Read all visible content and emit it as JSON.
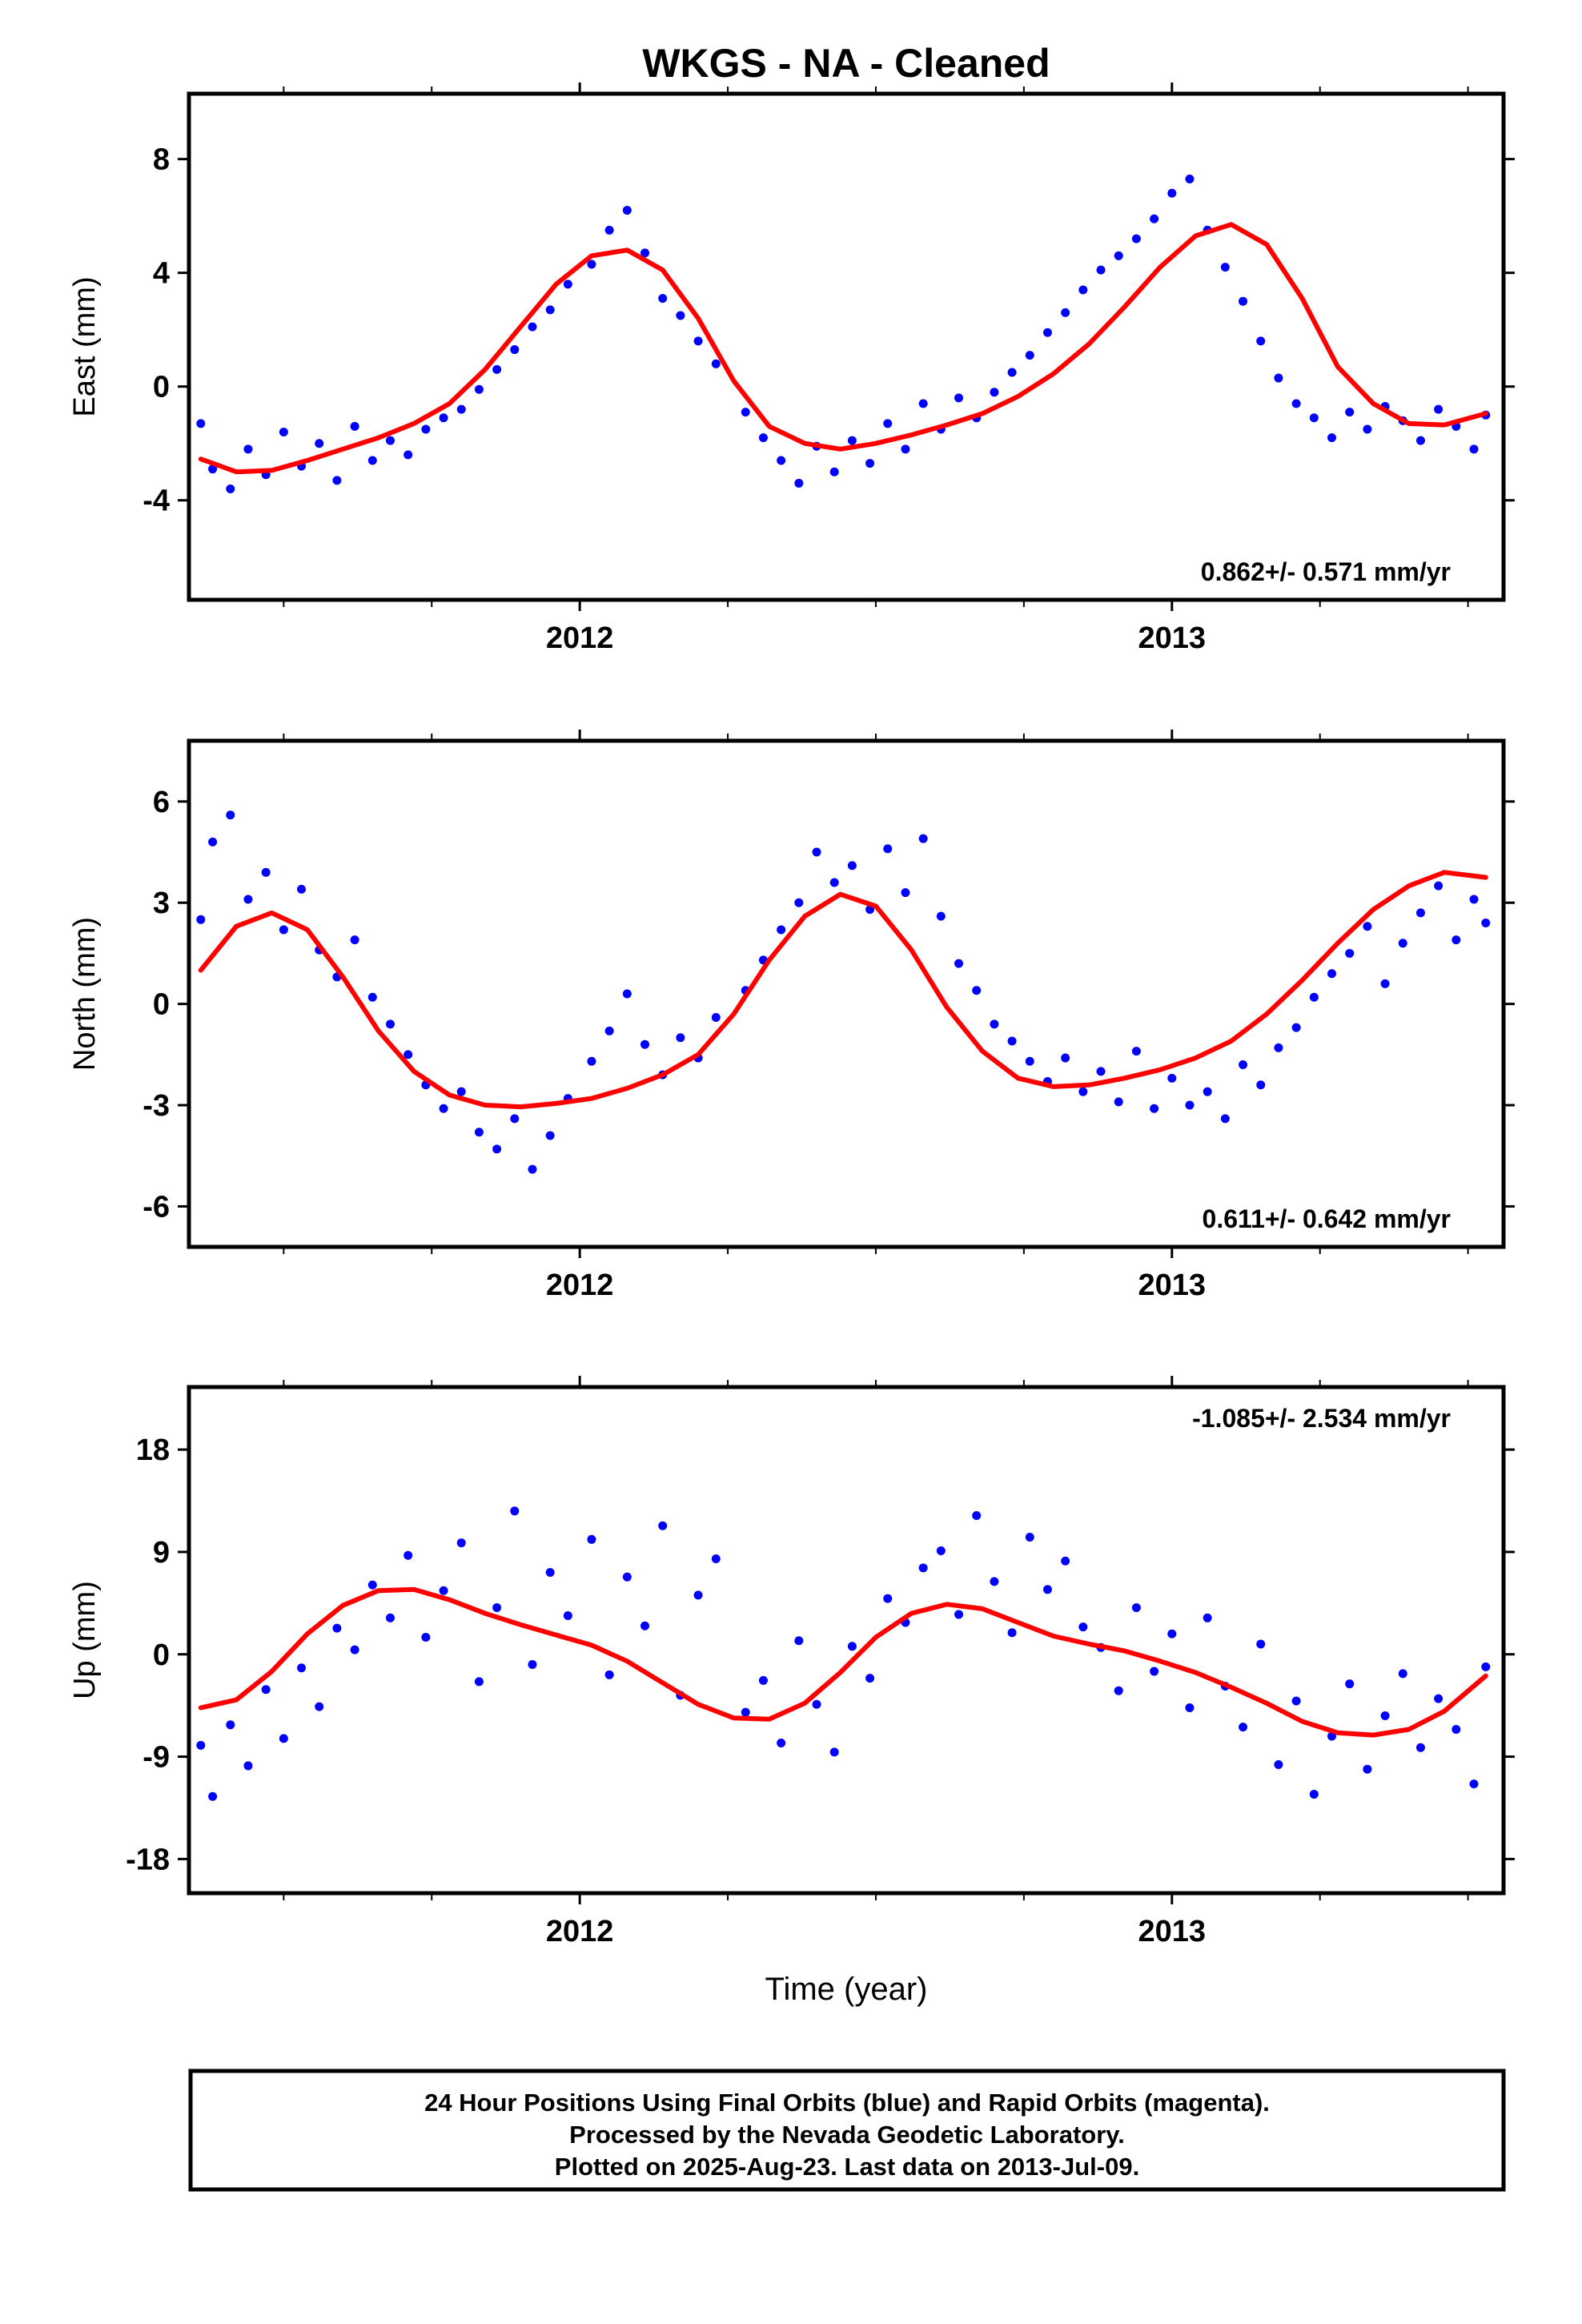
{
  "title": "WKGS  - NA - Cleaned",
  "colors": {
    "data": "#0000ff",
    "fit": "#ff0000",
    "frame": "#000000"
  },
  "chart_data": [
    {
      "type": "scatter",
      "component": "east",
      "ylabel": "East (mm)",
      "xlabel": "",
      "yticks": [
        -4,
        0,
        4,
        8
      ],
      "ylim": [
        -7.5,
        10.3
      ],
      "xlim": [
        2011.34,
        2013.56
      ],
      "xticks": [
        2012,
        2013
      ],
      "rate_text": "0.862+/- 0.571 mm/yr",
      "rate_position": "bottom-right",
      "series": [
        {
          "role": "points",
          "x": [
            2011.36,
            2011.38,
            2011.41,
            2011.44,
            2011.47,
            2011.5,
            2011.53,
            2011.56,
            2011.59,
            2011.62,
            2011.65,
            2011.68,
            2011.71,
            2011.74,
            2011.77,
            2011.8,
            2011.83,
            2011.86,
            2011.89,
            2011.92,
            2011.95,
            2011.98,
            2012.02,
            2012.05,
            2012.08,
            2012.11,
            2012.14,
            2012.17,
            2012.2,
            2012.23,
            2012.28,
            2012.31,
            2012.34,
            2012.37,
            2012.4,
            2012.43,
            2012.46,
            2012.49,
            2012.52,
            2012.55,
            2012.58,
            2012.61,
            2012.64,
            2012.67,
            2012.7,
            2012.73,
            2012.76,
            2012.79,
            2012.82,
            2012.85,
            2012.88,
            2012.91,
            2012.94,
            2012.97,
            2013.0,
            2013.03,
            2013.06,
            2013.09,
            2013.12,
            2013.15,
            2013.18,
            2013.21,
            2013.24,
            2013.27,
            2013.3,
            2013.33,
            2013.36,
            2013.39,
            2013.42,
            2013.45,
            2013.48,
            2013.51,
            2013.53
          ],
          "y": [
            -1.3,
            -2.9,
            -3.6,
            -2.2,
            -3.1,
            -1.6,
            -2.8,
            -2.0,
            -3.3,
            -1.4,
            -2.6,
            -1.9,
            -2.4,
            -1.5,
            -1.1,
            -0.8,
            -0.1,
            0.6,
            1.3,
            2.1,
            2.7,
            3.6,
            4.3,
            5.5,
            6.2,
            4.7,
            3.1,
            2.5,
            1.6,
            0.8,
            -0.9,
            -1.8,
            -2.6,
            -3.4,
            -2.1,
            -3.0,
            -1.9,
            -2.7,
            -1.3,
            -2.2,
            -0.6,
            -1.5,
            -0.4,
            -1.1,
            -0.2,
            0.5,
            1.1,
            1.9,
            2.6,
            3.4,
            4.1,
            4.6,
            5.2,
            5.9,
            6.8,
            7.3,
            5.5,
            4.2,
            3.0,
            1.6,
            0.3,
            -0.6,
            -1.1,
            -1.8,
            -0.9,
            -1.5,
            -0.7,
            -1.2,
            -1.9,
            -0.8,
            -1.4,
            -2.2,
            -1.0
          ]
        },
        {
          "role": "fit",
          "x": [
            2011.36,
            2011.42,
            2011.48,
            2011.54,
            2011.6,
            2011.66,
            2011.72,
            2011.78,
            2011.84,
            2011.9,
            2011.96,
            2012.02,
            2012.08,
            2012.14,
            2012.2,
            2012.26,
            2012.32,
            2012.38,
            2012.44,
            2012.5,
            2012.56,
            2012.62,
            2012.68,
            2012.74,
            2012.8,
            2012.86,
            2012.92,
            2012.98,
            2013.04,
            2013.1,
            2013.16,
            2013.22,
            2013.28,
            2013.34,
            2013.4,
            2013.46,
            2013.53
          ],
          "y": [
            -2.55,
            -3.0,
            -2.95,
            -2.6,
            -2.2,
            -1.8,
            -1.3,
            -0.6,
            0.6,
            2.1,
            3.6,
            4.6,
            4.8,
            4.1,
            2.4,
            0.2,
            -1.4,
            -2.0,
            -2.2,
            -2.0,
            -1.7,
            -1.35,
            -0.95,
            -0.35,
            0.45,
            1.5,
            2.8,
            4.2,
            5.3,
            5.7,
            5.0,
            3.1,
            0.7,
            -0.6,
            -1.3,
            -1.35,
            -0.95
          ]
        }
      ]
    },
    {
      "type": "scatter",
      "component": "north",
      "ylabel": "North (mm)",
      "xlabel": "",
      "yticks": [
        -6,
        -3,
        0,
        3,
        6
      ],
      "ylim": [
        -7.2,
        7.8
      ],
      "xlim": [
        2011.34,
        2013.56
      ],
      "xticks": [
        2012,
        2013
      ],
      "rate_text": "0.611+/- 0.642 mm/yr",
      "rate_position": "bottom-right",
      "series": [
        {
          "role": "points",
          "x": [
            2011.36,
            2011.38,
            2011.41,
            2011.44,
            2011.47,
            2011.5,
            2011.53,
            2011.56,
            2011.59,
            2011.62,
            2011.65,
            2011.68,
            2011.71,
            2011.74,
            2011.77,
            2011.8,
            2011.83,
            2011.86,
            2011.89,
            2011.92,
            2011.95,
            2011.98,
            2012.02,
            2012.05,
            2012.08,
            2012.11,
            2012.14,
            2012.17,
            2012.2,
            2012.23,
            2012.28,
            2012.31,
            2012.34,
            2012.37,
            2012.4,
            2012.43,
            2012.46,
            2012.49,
            2012.52,
            2012.55,
            2012.58,
            2012.61,
            2012.64,
            2012.67,
            2012.7,
            2012.73,
            2012.76,
            2012.79,
            2012.82,
            2012.85,
            2012.88,
            2012.91,
            2012.94,
            2012.97,
            2013.0,
            2013.03,
            2013.06,
            2013.09,
            2013.12,
            2013.15,
            2013.18,
            2013.21,
            2013.24,
            2013.27,
            2013.3,
            2013.33,
            2013.36,
            2013.39,
            2013.42,
            2013.45,
            2013.48,
            2013.51,
            2013.53
          ],
          "y": [
            2.5,
            4.8,
            5.6,
            3.1,
            3.9,
            2.2,
            3.4,
            1.6,
            0.8,
            1.9,
            0.2,
            -0.6,
            -1.5,
            -2.4,
            -3.1,
            -2.6,
            -3.8,
            -4.3,
            -3.4,
            -4.9,
            -3.9,
            -2.8,
            -1.7,
            -0.8,
            0.3,
            -1.2,
            -2.1,
            -1.0,
            -1.6,
            -0.4,
            0.4,
            1.3,
            2.2,
            3.0,
            4.5,
            3.6,
            4.1,
            2.8,
            4.6,
            3.3,
            4.9,
            2.6,
            1.2,
            0.4,
            -0.6,
            -1.1,
            -1.7,
            -2.3,
            -1.6,
            -2.6,
            -2.0,
            -2.9,
            -1.4,
            -3.1,
            -2.2,
            -3.0,
            -2.6,
            -3.4,
            -1.8,
            -2.4,
            -1.3,
            -0.7,
            0.2,
            0.9,
            1.5,
            2.3,
            0.6,
            1.8,
            2.7,
            3.5,
            1.9,
            3.1,
            2.4
          ]
        },
        {
          "role": "fit",
          "x": [
            2011.36,
            2011.42,
            2011.48,
            2011.54,
            2011.6,
            2011.66,
            2011.72,
            2011.78,
            2011.84,
            2011.9,
            2011.96,
            2012.02,
            2012.08,
            2012.14,
            2012.2,
            2012.26,
            2012.32,
            2012.38,
            2012.44,
            2012.5,
            2012.56,
            2012.62,
            2012.68,
            2012.74,
            2012.8,
            2012.86,
            2012.92,
            2012.98,
            2013.04,
            2013.1,
            2013.16,
            2013.22,
            2013.28,
            2013.34,
            2013.4,
            2013.46,
            2013.53
          ],
          "y": [
            1.0,
            2.3,
            2.7,
            2.2,
            0.8,
            -0.8,
            -2.0,
            -2.7,
            -3.0,
            -3.05,
            -2.95,
            -2.8,
            -2.5,
            -2.1,
            -1.5,
            -0.3,
            1.3,
            2.6,
            3.25,
            2.9,
            1.6,
            -0.1,
            -1.4,
            -2.2,
            -2.45,
            -2.4,
            -2.2,
            -1.95,
            -1.6,
            -1.1,
            -0.3,
            0.7,
            1.8,
            2.8,
            3.5,
            3.9,
            3.75
          ]
        }
      ]
    },
    {
      "type": "scatter",
      "component": "up",
      "ylabel": "Up (mm)",
      "xlabel": "Time (year)",
      "yticks": [
        -18,
        -9,
        0,
        9,
        18
      ],
      "ylim": [
        -21,
        23.5
      ],
      "xlim": [
        2011.34,
        2013.56
      ],
      "xticks": [
        2012,
        2013
      ],
      "rate_text": "-1.085+/- 2.534 mm/yr",
      "rate_position": "top-right",
      "series": [
        {
          "role": "points",
          "x": [
            2011.36,
            2011.38,
            2011.41,
            2011.44,
            2011.47,
            2011.5,
            2011.53,
            2011.56,
            2011.59,
            2011.62,
            2011.65,
            2011.68,
            2011.71,
            2011.74,
            2011.77,
            2011.8,
            2011.83,
            2011.86,
            2011.89,
            2011.92,
            2011.95,
            2011.98,
            2012.02,
            2012.05,
            2012.08,
            2012.11,
            2012.14,
            2012.17,
            2012.2,
            2012.23,
            2012.28,
            2012.31,
            2012.34,
            2012.37,
            2012.4,
            2012.43,
            2012.46,
            2012.49,
            2012.52,
            2012.55,
            2012.58,
            2012.61,
            2012.64,
            2012.67,
            2012.7,
            2012.73,
            2012.76,
            2012.79,
            2012.82,
            2012.85,
            2012.88,
            2012.91,
            2012.94,
            2012.97,
            2013.0,
            2013.03,
            2013.06,
            2013.09,
            2013.12,
            2013.15,
            2013.18,
            2013.21,
            2013.24,
            2013.27,
            2013.3,
            2013.33,
            2013.36,
            2013.39,
            2013.42,
            2013.45,
            2013.48,
            2013.51,
            2013.53
          ],
          "y": [
            -8.0,
            -12.5,
            -6.2,
            -9.8,
            -3.1,
            -7.4,
            -1.2,
            -4.6,
            2.3,
            0.4,
            6.1,
            3.2,
            8.7,
            1.5,
            5.6,
            9.8,
            -2.4,
            4.1,
            12.6,
            -0.9,
            7.2,
            3.4,
            10.1,
            -1.8,
            6.8,
            2.5,
            11.3,
            -3.6,
            5.2,
            8.4,
            -5.1,
            -2.3,
            -7.8,
            1.2,
            -4.4,
            -8.6,
            0.7,
            -2.1,
            4.9,
            2.8,
            7.6,
            9.1,
            3.5,
            12.2,
            6.4,
            1.9,
            10.3,
            5.7,
            8.2,
            2.4,
            0.6,
            -3.2,
            4.1,
            -1.5,
            1.8,
            -4.7,
            3.2,
            -2.8,
            -6.4,
            0.9,
            -9.7,
            -4.1,
            -12.3,
            -7.2,
            -2.6,
            -10.1,
            -5.4,
            -1.7,
            -8.2,
            -3.9,
            -6.6,
            -11.4,
            -1.1
          ]
        },
        {
          "role": "fit",
          "x": [
            2011.36,
            2011.42,
            2011.48,
            2011.54,
            2011.6,
            2011.66,
            2011.72,
            2011.78,
            2011.84,
            2011.9,
            2011.96,
            2012.02,
            2012.08,
            2012.14,
            2012.2,
            2012.26,
            2012.32,
            2012.38,
            2012.44,
            2012.5,
            2012.56,
            2012.62,
            2012.68,
            2012.74,
            2012.8,
            2012.86,
            2012.92,
            2012.98,
            2013.04,
            2013.1,
            2013.16,
            2013.22,
            2013.28,
            2013.34,
            2013.4,
            2013.46,
            2013.53
          ],
          "y": [
            -4.7,
            -4.0,
            -1.5,
            1.8,
            4.3,
            5.6,
            5.7,
            4.8,
            3.6,
            2.6,
            1.7,
            0.8,
            -0.6,
            -2.5,
            -4.4,
            -5.6,
            -5.7,
            -4.3,
            -1.6,
            1.5,
            3.6,
            4.4,
            4.0,
            2.8,
            1.6,
            0.9,
            0.3,
            -0.6,
            -1.6,
            -2.9,
            -4.3,
            -5.9,
            -6.9,
            -7.1,
            -6.6,
            -5.0,
            -1.9
          ]
        }
      ]
    }
  ],
  "footer": {
    "line1": "24 Hour Positions Using Final Orbits (blue) and Rapid Orbits (magenta).",
    "line2": "Processed by the Nevada Geodetic Laboratory.",
    "line3": "Plotted on 2025-Aug-23. Last data on 2013-Jul-09."
  }
}
